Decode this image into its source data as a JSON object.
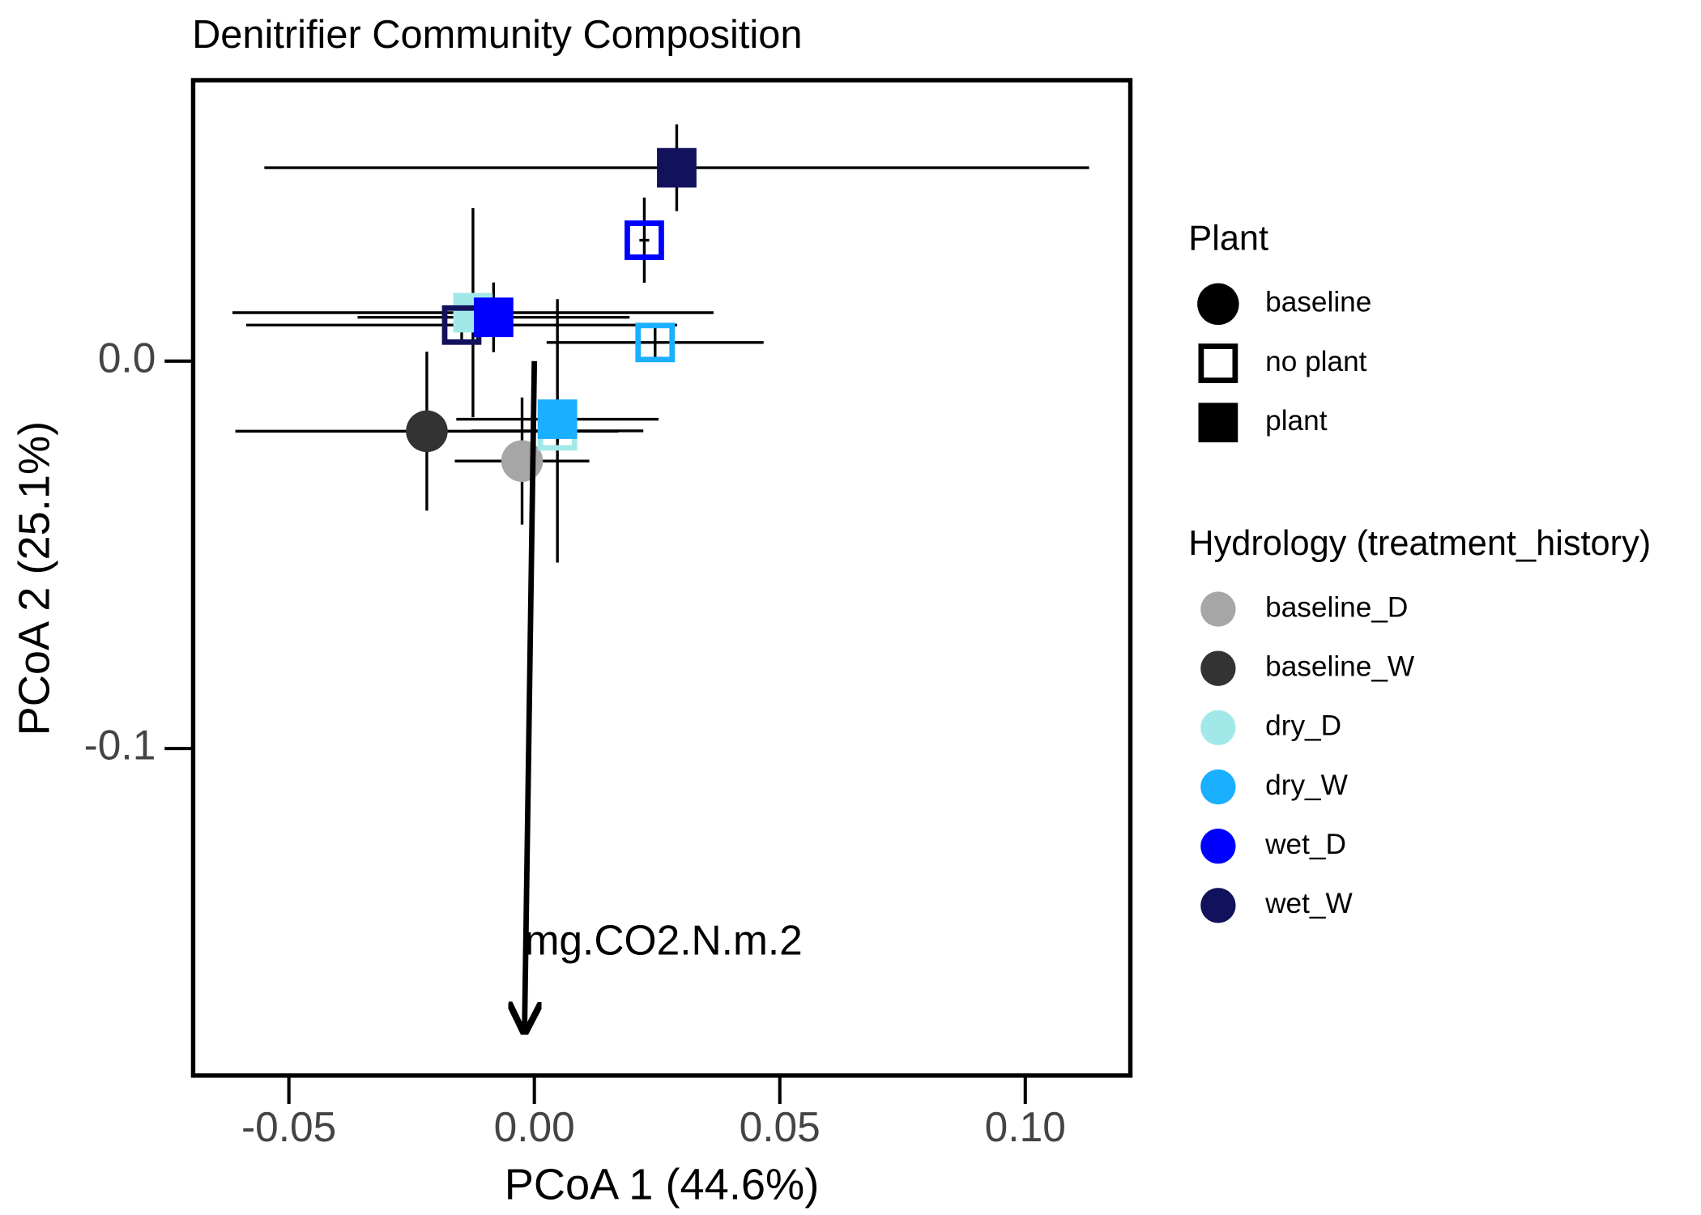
{
  "chart_data": {
    "type": "scatter",
    "title": "Denitrifier Community Composition",
    "x_label": "PCoA 1 (44.6%)",
    "y_label": "PCoA 2 (25.1%)",
    "xlim": [
      -0.0695,
      0.1214
    ],
    "ylim": [
      -0.1844,
      0.0725
    ],
    "xticks": [
      -0.05,
      {
        "value": 0,
        "label": "0.00"
      },
      0.05,
      {
        "value": 0.1,
        "label": "0.10"
      }
    ],
    "yticks": [
      {
        "value": 0,
        "label": "0.0"
      },
      -0.1
    ],
    "legend_plant": {
      "title": "Plant",
      "entries": [
        {
          "label": "baseline",
          "shape": "circle"
        },
        {
          "label": "no plant",
          "shape": "open-square"
        },
        {
          "label": "plant",
          "shape": "square"
        }
      ]
    },
    "legend_hydrology": {
      "title": "Hydrology (treatment_history)",
      "entries": [
        {
          "label": "baseline_D",
          "color": "#a6a6a6"
        },
        {
          "label": "baseline_W",
          "color": "#333333"
        },
        {
          "label": "dry_D",
          "color": "#a3e8e8"
        },
        {
          "label": "dry_W",
          "color": "#1aafff"
        },
        {
          "label": "wet_D",
          "color": "#0000ff"
        },
        {
          "label": "wet_W",
          "color": "#12125c"
        }
      ]
    },
    "points": [
      {
        "hydrology": "baseline_W",
        "plant": "baseline",
        "x": -0.0219,
        "y": -0.0181,
        "xerr": 0.039,
        "yerr": 0.0205
      },
      {
        "hydrology": "baseline_D",
        "plant": "baseline",
        "x": -0.0025,
        "y": -0.0258,
        "xerr": 0.0137,
        "yerr": 0.0164
      },
      {
        "hydrology": "dry_D",
        "plant": "plant",
        "x": -0.0125,
        "y": 0.0125,
        "xerr": 0.049,
        "yerr": 0.027
      },
      {
        "hydrology": "wet_W",
        "plant": "no plant",
        "x": -0.0148,
        "y": 0.0093,
        "xerr": 0.0439,
        "yerr": 0.005
      },
      {
        "hydrology": "wet_D",
        "plant": "plant",
        "x": -0.0083,
        "y": 0.0113,
        "xerr": 0.0277,
        "yerr": 0.009
      },
      {
        "hydrology": "dry_D",
        "plant": "no plant",
        "x": 0.0047,
        "y": -0.018,
        "xerr": 0.0175,
        "yerr": 0.034
      },
      {
        "hydrology": "dry_W",
        "plant": "plant",
        "x": 0.0047,
        "y": -0.015,
        "xerr": 0.0206,
        "yerr": 0.006
      },
      {
        "hydrology": "dry_W",
        "plant": "no plant",
        "x": 0.0246,
        "y": 0.0048,
        "xerr": 0.0221,
        "yerr": 0.005
      },
      {
        "hydrology": "wet_D",
        "plant": "no plant",
        "x": 0.0224,
        "y": 0.0312,
        "xerr": 0.001,
        "yerr": 0.011
      },
      {
        "hydrology": "wet_W",
        "plant": "plant",
        "x": 0.029,
        "y": 0.0499,
        "xerr": 0.084,
        "yerr": 0.0112
      }
    ],
    "arrow": {
      "label": "mg.CO2.N.m.2",
      "x": [
        0,
        -0.002
      ],
      "y": [
        0,
        -0.173
      ]
    }
  }
}
